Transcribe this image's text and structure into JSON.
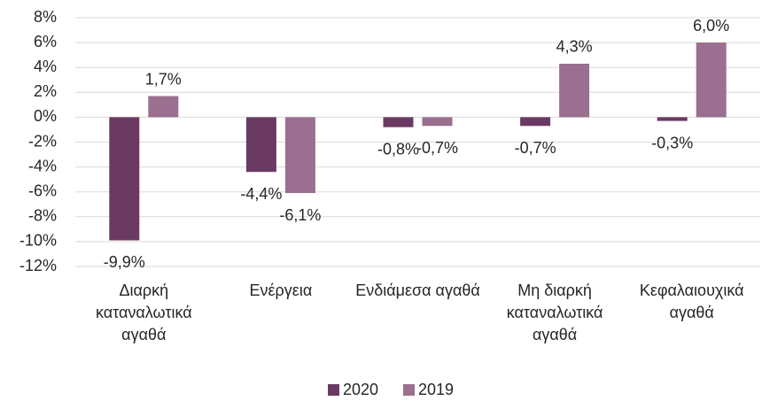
{
  "chart_data": {
    "type": "bar",
    "categories": [
      "Διαρκή καταναλωτικά αγαθά",
      "Ενέργεια",
      "Ενδιάμεσα αγαθά",
      "Μη διαρκή καταναλωτικά αγαθά",
      "Κεφαλαιουχικά αγαθά"
    ],
    "series": [
      {
        "name": "2020",
        "color": "#6b3a63",
        "values": [
          -9.9,
          -4.4,
          -0.8,
          -0.7,
          -0.3
        ],
        "value_labels": [
          "-9,9%",
          "-4,4%",
          "-0,8%",
          "-0,7%",
          "-0,3%"
        ]
      },
      {
        "name": "2019",
        "color": "#9a6f8f",
        "values": [
          1.7,
          -6.1,
          -0.7,
          4.3,
          6.0
        ],
        "value_labels": [
          "1,7%",
          "-6,1%",
          "-0,7%",
          "4,3%",
          "6,0%"
        ]
      }
    ],
    "ylim": [
      -12,
      8
    ],
    "yticks": [
      {
        "value": -12,
        "label": "-12%"
      },
      {
        "value": -10,
        "label": "-10%"
      },
      {
        "value": -8,
        "label": "-8%"
      },
      {
        "value": -6,
        "label": "-6%"
      },
      {
        "value": -4,
        "label": "-4%"
      },
      {
        "value": -2,
        "label": "-2%"
      },
      {
        "value": 0,
        "label": "0%"
      },
      {
        "value": 2,
        "label": "2%"
      },
      {
        "value": 4,
        "label": "4%"
      },
      {
        "value": 6,
        "label": "6%"
      },
      {
        "value": 8,
        "label": "8%"
      }
    ],
    "grid": true,
    "legend": "bottom"
  }
}
